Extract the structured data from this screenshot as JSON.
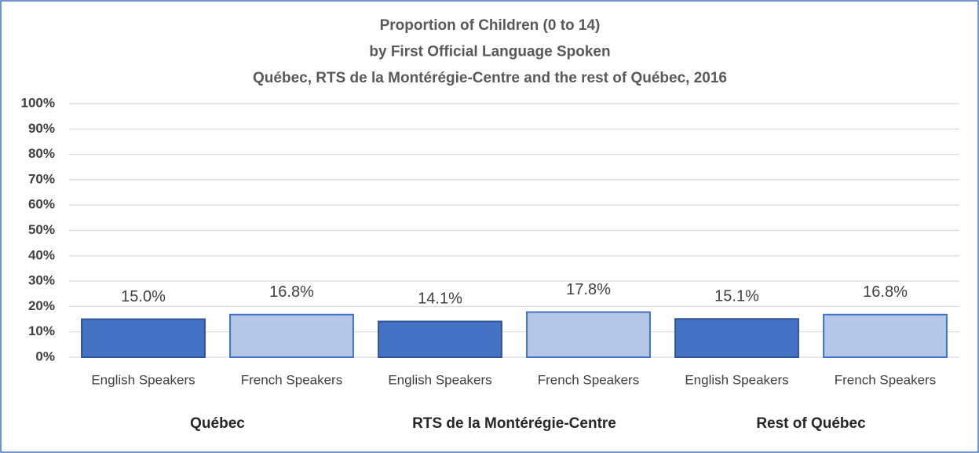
{
  "chart_data": {
    "type": "bar",
    "title": [
      "Proportion of Children (0 to 14)",
      "by First Official Language Spoken",
      "Québec, RTS de la Montérégie-Centre and the rest of Québec, 2016"
    ],
    "categories": [
      "English Speakers",
      "French Speakers",
      "English Speakers",
      "French Speakers",
      "English Speakers",
      "French Speakers"
    ],
    "groups": [
      "Québec",
      "RTS de la Montérégie-Centre",
      "Rest of Québec"
    ],
    "values": [
      15.0,
      16.8,
      14.1,
      17.8,
      15.1,
      16.8
    ],
    "value_labels": [
      "15.0%",
      "16.8%",
      "14.1%",
      "17.8%",
      "15.1%",
      "16.8%"
    ],
    "colors": [
      "#4472c4",
      "#b4c7e7",
      "#4472c4",
      "#b4c7e7",
      "#4472c4",
      "#b4c7e7"
    ],
    "ylim": [
      0,
      100
    ],
    "yticks": [
      {
        "value": 0,
        "label": "0%"
      },
      {
        "value": 10,
        "label": "10%"
      },
      {
        "value": 20,
        "label": "20%"
      },
      {
        "value": 30,
        "label": "30%"
      },
      {
        "value": 40,
        "label": "40%"
      },
      {
        "value": 50,
        "label": "50%"
      },
      {
        "value": 60,
        "label": "60%"
      },
      {
        "value": 70,
        "label": "70%"
      },
      {
        "value": 80,
        "label": "80%"
      },
      {
        "value": 90,
        "label": "90%"
      },
      {
        "value": 100,
        "label": "100%"
      }
    ],
    "grid": true
  }
}
